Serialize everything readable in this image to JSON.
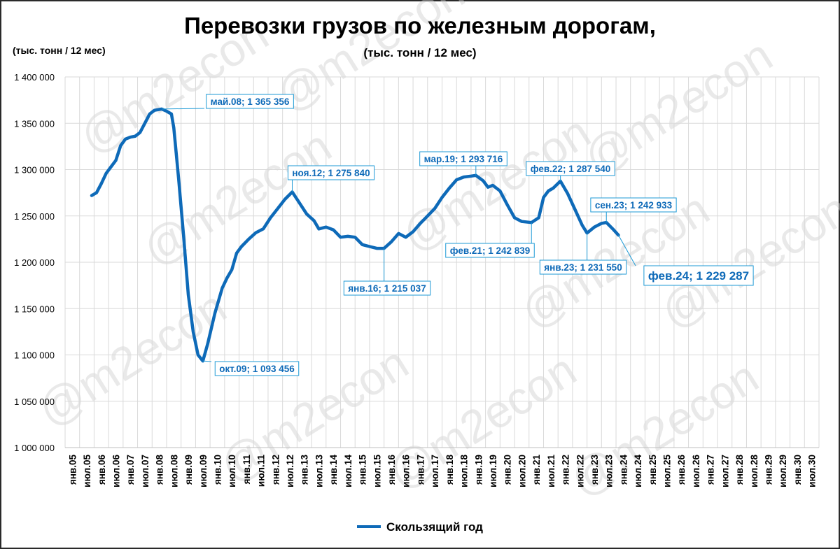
{
  "watermark": "@m2econ",
  "chart_data": {
    "type": "line",
    "title": "Перевозки грузов по железным дорогам,",
    "subtitle": "(тыс. тонн / 12 мес)",
    "ylabel": "(тыс. тонн / 12 мес)",
    "ylim": [
      1000000,
      1400000
    ],
    "ytick_step": 50000,
    "ytick_labels": [
      "1 000 000",
      "1 050 000",
      "1 100 000",
      "1 150 000",
      "1 200 000",
      "1 250 000",
      "1 300 000",
      "1 350 000",
      "1 400 000"
    ],
    "xtick_labels": [
      "янв.05",
      "июл.05",
      "янв.06",
      "июл.06",
      "янв.07",
      "июл.07",
      "янв.08",
      "июл.08",
      "янв.09",
      "июл.09",
      "янв.10",
      "июл.10",
      "янв.11",
      "июл.11",
      "янв.12",
      "июл.12",
      "янв.13",
      "июл.13",
      "янв.14",
      "июл.14",
      "янв.15",
      "июл.15",
      "янв.16",
      "июл.16",
      "янв.17",
      "июл.17",
      "янв.18",
      "июл.18",
      "янв.19",
      "июл.19",
      "янв.20",
      "июл.20",
      "янв.21",
      "июл.21",
      "янв.22",
      "июл.22",
      "янв.23",
      "июл.23",
      "янв.24",
      "июл.24",
      "янв.25",
      "июл.25",
      "янв.26",
      "июл.26",
      "янв.27",
      "июл.27",
      "янв.28",
      "июл.28",
      "янв.29",
      "июл.29",
      "янв.30",
      "июл.30"
    ],
    "grid": true,
    "legend_position": "bottom",
    "color": "#0e6ab8",
    "series": [
      {
        "name": "Скользящий год",
        "points": [
          [
            "2005-12",
            1272000
          ],
          [
            "2006-02",
            1275000
          ],
          [
            "2006-04",
            1285000
          ],
          [
            "2006-06",
            1296000
          ],
          [
            "2006-08",
            1303000
          ],
          [
            "2006-10",
            1310000
          ],
          [
            "2006-12",
            1326000
          ],
          [
            "2007-02",
            1333000
          ],
          [
            "2007-04",
            1335000
          ],
          [
            "2007-06",
            1336000
          ],
          [
            "2007-08",
            1340000
          ],
          [
            "2007-10",
            1350000
          ],
          [
            "2007-12",
            1360000
          ],
          [
            "2008-02",
            1364000
          ],
          [
            "2008-05",
            1365356
          ],
          [
            "2008-07",
            1363000
          ],
          [
            "2008-09",
            1360000
          ],
          [
            "2008-10",
            1345000
          ],
          [
            "2008-12",
            1290000
          ],
          [
            "2009-02",
            1230000
          ],
          [
            "2009-04",
            1165000
          ],
          [
            "2009-06",
            1125000
          ],
          [
            "2009-08",
            1100000
          ],
          [
            "2009-10",
            1093456
          ],
          [
            "2009-12",
            1112000
          ],
          [
            "2010-03",
            1145000
          ],
          [
            "2010-06",
            1172000
          ],
          [
            "2010-08",
            1183000
          ],
          [
            "2010-10",
            1192000
          ],
          [
            "2010-12",
            1210000
          ],
          [
            "2011-02",
            1217000
          ],
          [
            "2011-05",
            1225000
          ],
          [
            "2011-08",
            1232000
          ],
          [
            "2011-11",
            1236000
          ],
          [
            "2012-02",
            1248000
          ],
          [
            "2012-05",
            1258000
          ],
          [
            "2012-08",
            1268000
          ],
          [
            "2012-11",
            1275840
          ],
          [
            "2013-02",
            1264000
          ],
          [
            "2013-05",
            1252000
          ],
          [
            "2013-08",
            1245000
          ],
          [
            "2013-10",
            1236000
          ],
          [
            "2014-01",
            1238000
          ],
          [
            "2014-04",
            1235000
          ],
          [
            "2014-07",
            1227000
          ],
          [
            "2014-10",
            1228000
          ],
          [
            "2015-01",
            1227000
          ],
          [
            "2015-04",
            1219000
          ],
          [
            "2015-07",
            1217000
          ],
          [
            "2015-10",
            1215000
          ],
          [
            "2016-01",
            1215037
          ],
          [
            "2016-04",
            1222000
          ],
          [
            "2016-07",
            1231000
          ],
          [
            "2016-10",
            1227000
          ],
          [
            "2017-01",
            1233000
          ],
          [
            "2017-04",
            1242000
          ],
          [
            "2017-07",
            1250000
          ],
          [
            "2017-10",
            1258000
          ],
          [
            "2018-01",
            1270000
          ],
          [
            "2018-04",
            1280000
          ],
          [
            "2018-07",
            1289000
          ],
          [
            "2018-10",
            1292000
          ],
          [
            "2019-01",
            1293000
          ],
          [
            "2019-03",
            1293716
          ],
          [
            "2019-06",
            1288000
          ],
          [
            "2019-08",
            1281000
          ],
          [
            "2019-10",
            1283000
          ],
          [
            "2020-01",
            1277000
          ],
          [
            "2020-04",
            1262000
          ],
          [
            "2020-07",
            1248000
          ],
          [
            "2020-10",
            1244000
          ],
          [
            "2021-02",
            1242839
          ],
          [
            "2021-05",
            1248000
          ],
          [
            "2021-07",
            1270000
          ],
          [
            "2021-09",
            1277000
          ],
          [
            "2021-11",
            1280000
          ],
          [
            "2022-02",
            1287540
          ],
          [
            "2022-05",
            1274000
          ],
          [
            "2022-08",
            1257000
          ],
          [
            "2022-11",
            1240000
          ],
          [
            "2023-01",
            1231550
          ],
          [
            "2023-04",
            1238000
          ],
          [
            "2023-07",
            1242000
          ],
          [
            "2023-09",
            1242933
          ],
          [
            "2023-12",
            1235000
          ],
          [
            "2024-02",
            1229287
          ]
        ]
      }
    ],
    "annotations": [
      {
        "date": "2008-05",
        "value": 1365356,
        "label": "май.08; 1 365 356"
      },
      {
        "date": "2009-10",
        "value": 1093456,
        "label": "окт.09; 1 093 456"
      },
      {
        "date": "2012-11",
        "value": 1275840,
        "label": "ноя.12; 1 275 840"
      },
      {
        "date": "2016-01",
        "value": 1215037,
        "label": "янв.16; 1 215 037"
      },
      {
        "date": "2019-03",
        "value": 1293716,
        "label": "мар.19; 1 293 716"
      },
      {
        "date": "2021-02",
        "value": 1242839,
        "label": "фев.21; 1 242 839"
      },
      {
        "date": "2022-02",
        "value": 1287540,
        "label": "фев.22; 1 287 540"
      },
      {
        "date": "2023-01",
        "value": 1231550,
        "label": "янв.23; 1 231 550"
      },
      {
        "date": "2023-09",
        "value": 1242933,
        "label": "сен.23; 1 242 933"
      },
      {
        "date": "2024-02",
        "value": 1229287,
        "label": "фев.24; 1 229 287"
      }
    ]
  }
}
